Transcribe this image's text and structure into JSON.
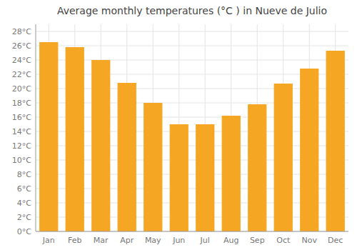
{
  "chart_data": {
    "type": "bar",
    "title": "Average monthly temperatures (°C ) in Nueve de Julio",
    "categories": [
      "Jan",
      "Feb",
      "Mar",
      "Apr",
      "May",
      "Jun",
      "Jul",
      "Aug",
      "Sep",
      "Oct",
      "Nov",
      "Dec"
    ],
    "values": [
      26.5,
      25.8,
      24.0,
      20.8,
      18.0,
      15.0,
      15.0,
      16.2,
      17.8,
      20.7,
      22.8,
      25.3
    ],
    "color": "#F5A623",
    "ylim": [
      0,
      29
    ],
    "yticks": [
      {
        "value": 0,
        "label": "0°C"
      },
      {
        "value": 2,
        "label": "2°C"
      },
      {
        "value": 4,
        "label": "4°C"
      },
      {
        "value": 6,
        "label": "6°C"
      },
      {
        "value": 8,
        "label": "8°C"
      },
      {
        "value": 10,
        "label": "10°C"
      },
      {
        "value": 12,
        "label": "12°C"
      },
      {
        "value": 14,
        "label": "14°C"
      },
      {
        "value": 16,
        "label": "16°C"
      },
      {
        "value": 18,
        "label": "18°C"
      },
      {
        "value": 20,
        "label": "20°C"
      },
      {
        "value": 22,
        "label": "22°C"
      },
      {
        "value": 24,
        "label": "24°C"
      },
      {
        "value": 26,
        "label": "26°C"
      },
      {
        "value": 28,
        "label": "28°C"
      }
    ],
    "grid": true
  }
}
